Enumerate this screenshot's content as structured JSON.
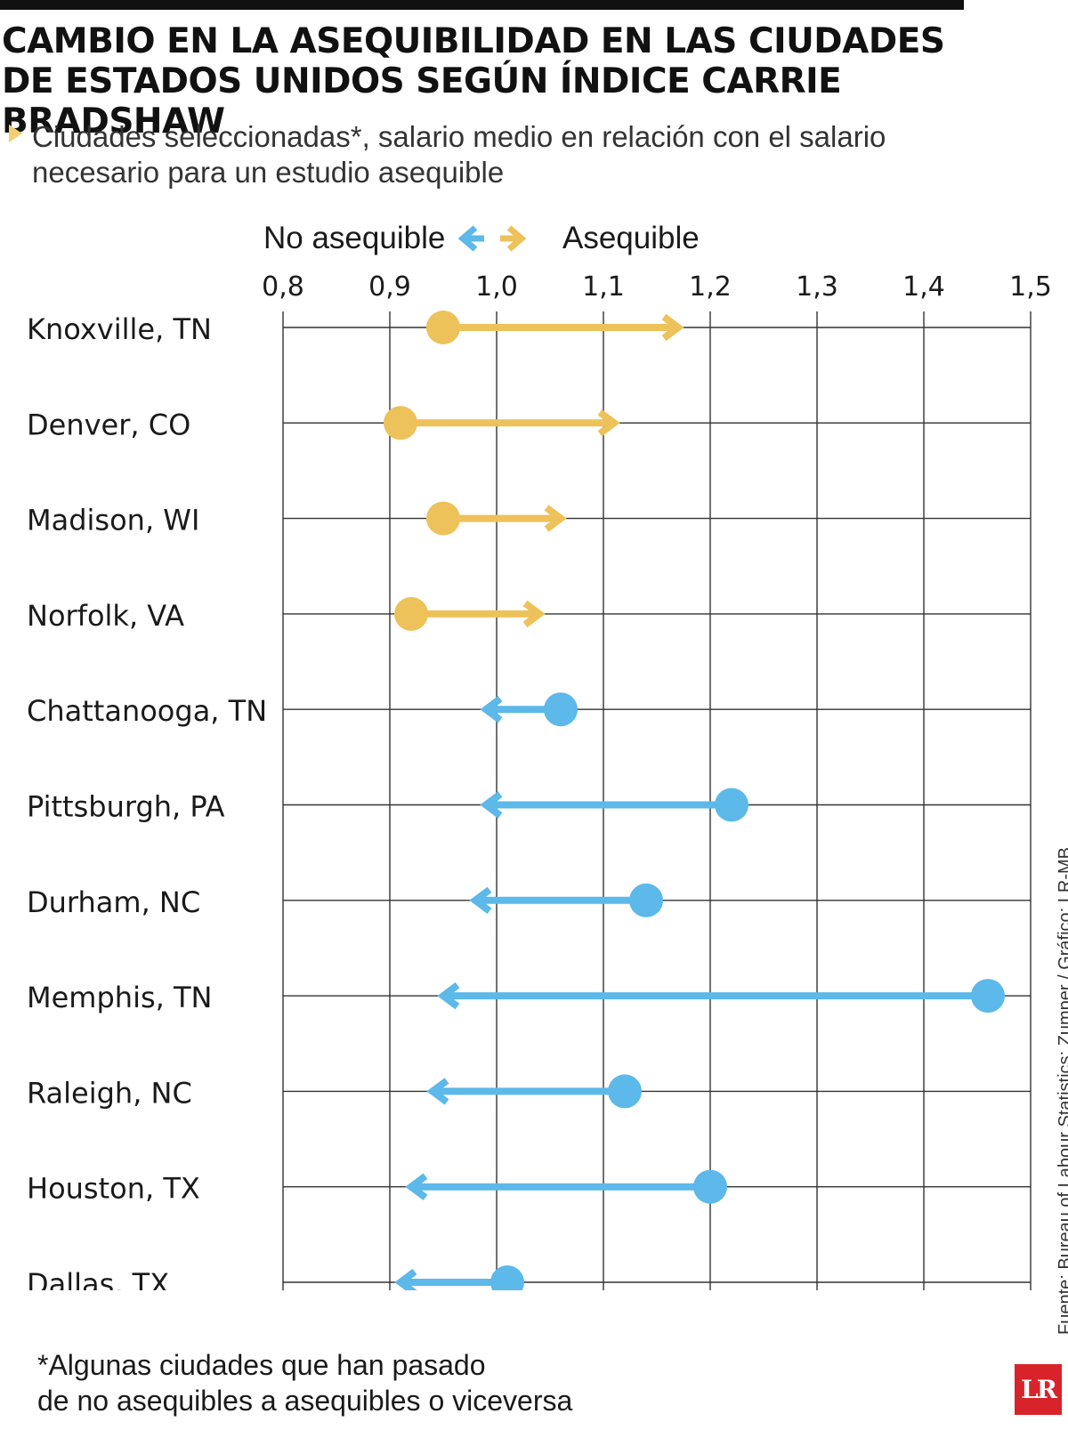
{
  "title_line1": "CAMBIO EN LA ASEQUIBILIDAD EN LAS CIUDADES",
  "title_line2": "DE ESTADOS UNIDOS SEGÚN ÍNDICE CARRIE BRADSHAW",
  "subtitle_line1": "Ciudades seleccionadas*, salario medio en relación con el salario",
  "subtitle_line2": "necesario para un estudio asequible",
  "legend": {
    "left_label": "No asequible",
    "right_label": "Asequible"
  },
  "colors": {
    "affordable": "#eec25a",
    "not_affordable": "#5cb9e9",
    "grid": "#333333"
  },
  "source": "Fuente: Bureau of Labour Statistics; Zumper / Gráfico: LR-MB",
  "footnote_line1": "*Algunas ciudades que han pasado",
  "footnote_line2": "de no asequibles a asequibles o viceversa",
  "logo_text": "LR",
  "chart_data": {
    "type": "dumbbell-arrow",
    "xlim": [
      0.8,
      1.5
    ],
    "x_ticks": [
      "0,8",
      "0,9",
      "1,0",
      "1,1",
      "1,2",
      "1,3",
      "1,4",
      "1,5"
    ],
    "x_tick_values": [
      0.8,
      0.9,
      1.0,
      1.1,
      1.2,
      1.3,
      1.4,
      1.5
    ],
    "grid": true,
    "rows": [
      {
        "city": "Knoxville, TN",
        "from": 0.95,
        "to": 1.17,
        "direction": "Asequible"
      },
      {
        "city": "Denver, CO",
        "from": 0.91,
        "to": 1.11,
        "direction": "Asequible"
      },
      {
        "city": "Madison, WI",
        "from": 0.95,
        "to": 1.06,
        "direction": "Asequible"
      },
      {
        "city": "Norfolk, VA",
        "from": 0.92,
        "to": 1.04,
        "direction": "Asequible"
      },
      {
        "city": "Chattanooga, TN",
        "from": 1.06,
        "to": 0.99,
        "direction": "No asequible"
      },
      {
        "city": "Pittsburgh, PA",
        "from": 1.22,
        "to": 0.99,
        "direction": "No asequible"
      },
      {
        "city": "Durham, NC",
        "from": 1.14,
        "to": 0.98,
        "direction": "No asequible"
      },
      {
        "city": "Memphis, TN",
        "from": 1.46,
        "to": 0.95,
        "direction": "No asequible"
      },
      {
        "city": "Raleigh, NC",
        "from": 1.12,
        "to": 0.94,
        "direction": "No asequible"
      },
      {
        "city": "Houston, TX",
        "from": 1.2,
        "to": 0.92,
        "direction": "No asequible"
      },
      {
        "city": "Dallas, TX",
        "from": 1.01,
        "to": 0.91,
        "direction": "No asequible"
      }
    ]
  }
}
